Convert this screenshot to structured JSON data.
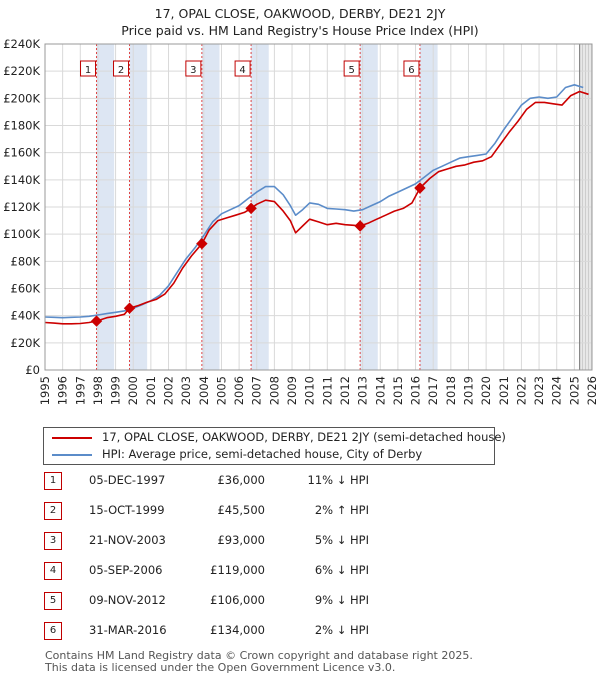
{
  "title_line1": "17, OPAL CLOSE, OAKWOOD, DERBY, DE21 2JY",
  "title_line2": "Price paid vs. HM Land Registry's House Price Index (HPI)",
  "chart_data": {
    "type": "line",
    "title": "17, OPAL CLOSE, OAKWOOD, DERBY, DE21 2JY — Price paid vs. HM Land Registry's House Price Index (HPI)",
    "xlim": [
      1995,
      2026
    ],
    "ylim": [
      0,
      240000
    ],
    "y_ticks": [
      0,
      20000,
      40000,
      60000,
      80000,
      100000,
      120000,
      140000,
      160000,
      180000,
      200000,
      220000,
      240000
    ],
    "y_tick_labels": [
      "£0",
      "£20K",
      "£40K",
      "£60K",
      "£80K",
      "£100K",
      "£120K",
      "£140K",
      "£160K",
      "£180K",
      "£200K",
      "£220K",
      "£240K"
    ],
    "x_ticks": [
      1995,
      1996,
      1997,
      1998,
      1999,
      2000,
      2001,
      2002,
      2003,
      2004,
      2005,
      2006,
      2007,
      2008,
      2009,
      2010,
      2011,
      2012,
      2013,
      2014,
      2015,
      2016,
      2017,
      2018,
      2019,
      2020,
      2021,
      2022,
      2023,
      2024,
      2025,
      2026
    ],
    "grid": true,
    "forecast_start": 2025.3,
    "series": [
      {
        "name": "17, OPAL CLOSE, OAKWOOD, DERBY, DE21 2JY (semi-detached house)",
        "color": "#cc0000",
        "points": [
          [
            1995.0,
            35000
          ],
          [
            1995.5,
            34500
          ],
          [
            1996.0,
            34000
          ],
          [
            1996.5,
            34000
          ],
          [
            1997.0,
            34200
          ],
          [
            1997.5,
            35000
          ],
          [
            1997.92,
            36000
          ],
          [
            1998.5,
            38500
          ],
          [
            1999.0,
            39500
          ],
          [
            1999.5,
            41000
          ],
          [
            1999.79,
            45500
          ],
          [
            2000.3,
            47500
          ],
          [
            2000.8,
            50000
          ],
          [
            2001.3,
            52000
          ],
          [
            2001.8,
            56000
          ],
          [
            2002.3,
            64000
          ],
          [
            2002.8,
            75000
          ],
          [
            2003.3,
            84000
          ],
          [
            2003.89,
            93000
          ],
          [
            2004.3,
            103000
          ],
          [
            2004.8,
            110000
          ],
          [
            2005.3,
            112000
          ],
          [
            2005.8,
            114000
          ],
          [
            2006.3,
            116000
          ],
          [
            2006.68,
            119000
          ],
          [
            2007.0,
            122000
          ],
          [
            2007.5,
            125000
          ],
          [
            2008.0,
            124000
          ],
          [
            2008.5,
            117000
          ],
          [
            2008.9,
            110000
          ],
          [
            2009.2,
            101000
          ],
          [
            2009.6,
            106000
          ],
          [
            2010.0,
            111000
          ],
          [
            2010.5,
            109000
          ],
          [
            2011.0,
            107000
          ],
          [
            2011.5,
            108000
          ],
          [
            2012.0,
            107000
          ],
          [
            2012.5,
            106500
          ],
          [
            2012.86,
            106000
          ],
          [
            2013.3,
            108000
          ],
          [
            2013.8,
            111000
          ],
          [
            2014.3,
            114000
          ],
          [
            2014.8,
            117000
          ],
          [
            2015.3,
            119000
          ],
          [
            2015.8,
            123000
          ],
          [
            2016.25,
            134000
          ],
          [
            2016.8,
            141000
          ],
          [
            2017.3,
            146000
          ],
          [
            2017.8,
            148000
          ],
          [
            2018.3,
            150000
          ],
          [
            2018.8,
            151000
          ],
          [
            2019.3,
            153000
          ],
          [
            2019.8,
            154000
          ],
          [
            2020.3,
            157000
          ],
          [
            2020.8,
            166000
          ],
          [
            2021.3,
            175000
          ],
          [
            2021.8,
            183000
          ],
          [
            2022.3,
            192000
          ],
          [
            2022.8,
            197000
          ],
          [
            2023.3,
            197000
          ],
          [
            2023.8,
            196000
          ],
          [
            2024.3,
            195000
          ],
          [
            2024.8,
            202000
          ],
          [
            2025.3,
            205000
          ],
          [
            2025.8,
            203000
          ]
        ]
      },
      {
        "name": "HPI: Average price, semi-detached house, City of Derby",
        "color": "#5b8cc9",
        "points": [
          [
            1995.0,
            39000
          ],
          [
            1995.5,
            38800
          ],
          [
            1996.0,
            38500
          ],
          [
            1996.5,
            38800
          ],
          [
            1997.0,
            39000
          ],
          [
            1997.5,
            39500
          ],
          [
            1998.0,
            40500
          ],
          [
            1998.5,
            41500
          ],
          [
            1999.0,
            42500
          ],
          [
            1999.5,
            43500
          ],
          [
            2000.0,
            45500
          ],
          [
            2000.5,
            48000
          ],
          [
            2001.0,
            51000
          ],
          [
            2001.5,
            55000
          ],
          [
            2002.0,
            62000
          ],
          [
            2002.5,
            72000
          ],
          [
            2003.0,
            82000
          ],
          [
            2003.5,
            90000
          ],
          [
            2004.0,
            99000
          ],
          [
            2004.5,
            109000
          ],
          [
            2005.0,
            115000
          ],
          [
            2005.5,
            118000
          ],
          [
            2006.0,
            121000
          ],
          [
            2006.5,
            126000
          ],
          [
            2007.0,
            131000
          ],
          [
            2007.5,
            135000
          ],
          [
            2008.0,
            135000
          ],
          [
            2008.5,
            129000
          ],
          [
            2008.9,
            121000
          ],
          [
            2009.2,
            114000
          ],
          [
            2009.6,
            118000
          ],
          [
            2010.0,
            123000
          ],
          [
            2010.5,
            122000
          ],
          [
            2011.0,
            119000
          ],
          [
            2011.5,
            118500
          ],
          [
            2012.0,
            118000
          ],
          [
            2012.5,
            117000
          ],
          [
            2013.0,
            118000
          ],
          [
            2013.5,
            121000
          ],
          [
            2014.0,
            124000
          ],
          [
            2014.5,
            128000
          ],
          [
            2015.0,
            131000
          ],
          [
            2015.5,
            134000
          ],
          [
            2016.0,
            137000
          ],
          [
            2016.5,
            142000
          ],
          [
            2017.0,
            147000
          ],
          [
            2017.5,
            150000
          ],
          [
            2018.0,
            153000
          ],
          [
            2018.5,
            156000
          ],
          [
            2019.0,
            157000
          ],
          [
            2019.5,
            158000
          ],
          [
            2020.0,
            159000
          ],
          [
            2020.5,
            167000
          ],
          [
            2021.0,
            177000
          ],
          [
            2021.5,
            186000
          ],
          [
            2022.0,
            195000
          ],
          [
            2022.5,
            200000
          ],
          [
            2023.0,
            201000
          ],
          [
            2023.5,
            200000
          ],
          [
            2024.0,
            201000
          ],
          [
            2024.5,
            208000
          ],
          [
            2025.0,
            210000
          ],
          [
            2025.5,
            208000
          ]
        ]
      }
    ],
    "sales": [
      {
        "label": "1",
        "date": "05-DEC-1997",
        "x": 1997.92,
        "price": 36000,
        "price_text": "£36,000",
        "hpi": "11% ↓ HPI"
      },
      {
        "label": "2",
        "date": "15-OCT-1999",
        "x": 1999.79,
        "price": 45500,
        "price_text": "£45,500",
        "hpi": "2% ↑ HPI"
      },
      {
        "label": "3",
        "date": "21-NOV-2003",
        "x": 2003.89,
        "price": 93000,
        "price_text": "£93,000",
        "hpi": "5% ↓ HPI"
      },
      {
        "label": "4",
        "date": "05-SEP-2006",
        "x": 2006.68,
        "price": 119000,
        "price_text": "£119,000",
        "hpi": "6% ↓ HPI"
      },
      {
        "label": "5",
        "date": "09-NOV-2012",
        "x": 2012.86,
        "price": 106000,
        "price_text": "£106,000",
        "hpi": "9% ↓ HPI"
      },
      {
        "label": "6",
        "date": "31-MAR-2016",
        "x": 2016.25,
        "price": 134000,
        "price_text": "£134,000",
        "hpi": "2% ↓ HPI"
      }
    ]
  },
  "legend": {
    "property_label": "17, OPAL CLOSE, OAKWOOD, DERBY, DE21 2JY (semi-detached house)",
    "hpi_label": "HPI: Average price, semi-detached house, City of Derby"
  },
  "footer": {
    "line1": "Contains HM Land Registry data © Crown copyright and database right 2025.",
    "line2": "This data is licensed under the Open Government Licence v3.0."
  }
}
